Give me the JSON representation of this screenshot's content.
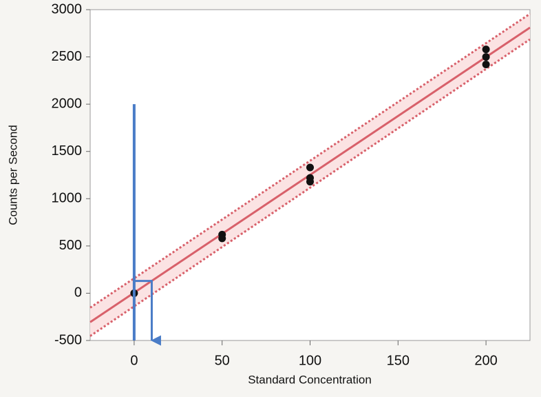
{
  "chart_data": {
    "type": "scatter",
    "x_label": "Standard Concentration",
    "y_label": "Counts per Second",
    "x": [
      0,
      50,
      50,
      100,
      100,
      100,
      200,
      200,
      200
    ],
    "values": [
      0,
      620,
      580,
      1330,
      1220,
      1180,
      2580,
      2500,
      2420
    ],
    "color": "#111111",
    "fit": {
      "x": [
        -25,
        225
      ],
      "y": [
        -306,
        2810
      ],
      "color": "#d8606a"
    },
    "upper": {
      "x": [
        -25,
        225
      ],
      "y": [
        -153,
        2956
      ]
    },
    "lower": {
      "x": [
        -25,
        225
      ],
      "y": [
        -453,
        2686
      ]
    },
    "band_color": "#fbe3e3",
    "guide": {
      "x": [
        0,
        0
      ],
      "y": [
        2000,
        -500
      ]
    },
    "arrow": {
      "x": [
        0,
        10,
        10
      ],
      "y": [
        130,
        130,
        -500
      ]
    },
    "guide_color": "#4a7cc7",
    "xlim": [
      -25,
      225
    ],
    "ylim": [
      -500,
      3000
    ],
    "xticks": [
      0,
      50,
      100,
      150,
      200
    ],
    "yticks": [
      -500,
      0,
      500,
      1000,
      1500,
      2000,
      2500,
      3000
    ]
  }
}
